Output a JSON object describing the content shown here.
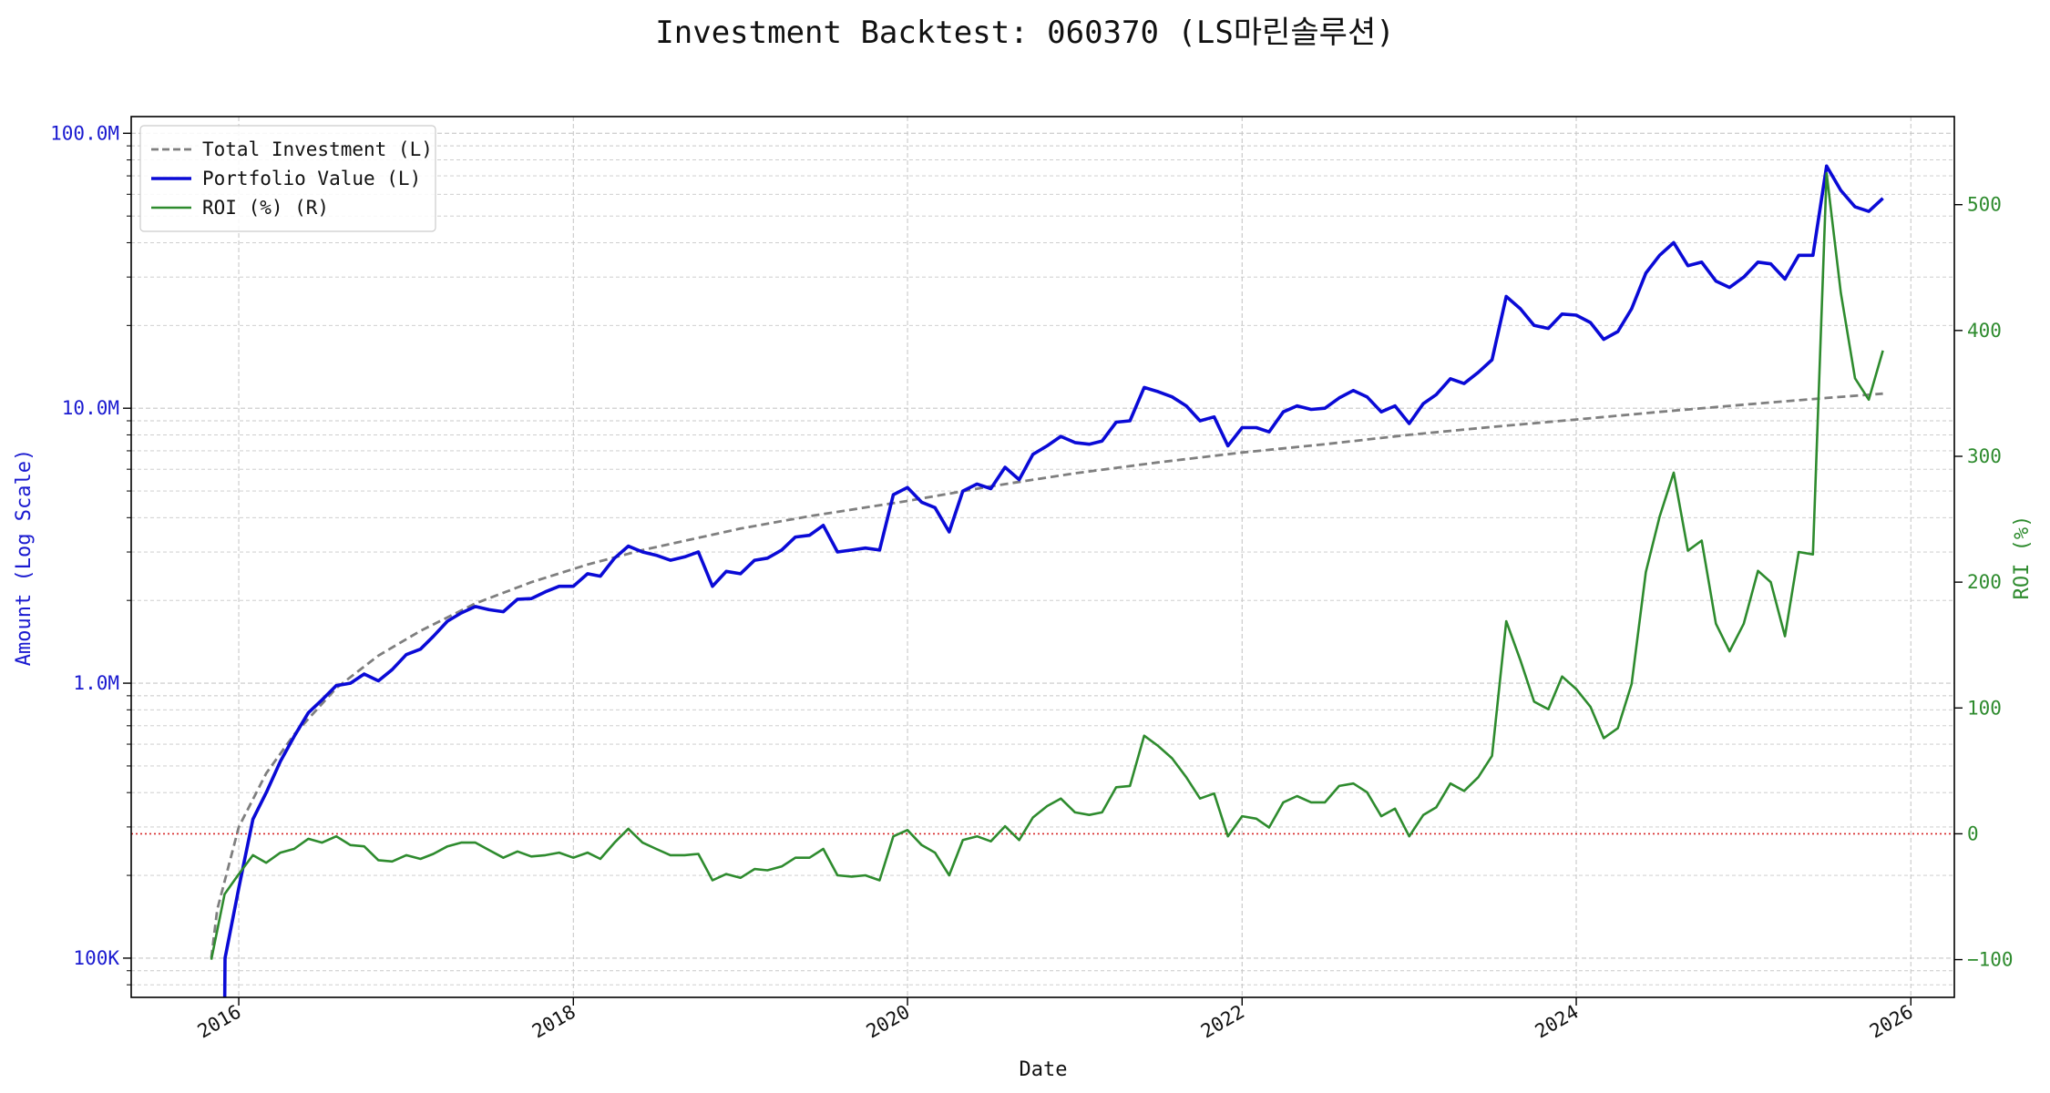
{
  "chart_data": {
    "type": "line",
    "title": "Investment Backtest: 060370 (LS마린솔루션)",
    "xlabel": "Date",
    "ylabel_left": "Amount (Log Scale)",
    "ylabel_right": "ROI (%)",
    "left_scale": "log",
    "x_range": [
      "2015-05-11",
      "2026-04-06"
    ],
    "ylim_left": [
      72000,
      115000000
    ],
    "ylim_right": [
      -130,
      570
    ],
    "x_ticks": [
      {
        "date": "2016-01-01",
        "label": "2016"
      },
      {
        "date": "2018-01-01",
        "label": "2018"
      },
      {
        "date": "2020-01-01",
        "label": "2020"
      },
      {
        "date": "2022-01-01",
        "label": "2022"
      },
      {
        "date": "2024-01-01",
        "label": "2024"
      },
      {
        "date": "2026-01-01",
        "label": "2026"
      }
    ],
    "y_left_ticks": [
      {
        "value": 100000,
        "label": "100K"
      },
      {
        "value": 1000000,
        "label": "1.0M"
      },
      {
        "value": 10000000,
        "label": "10.0M"
      },
      {
        "value": 100000000,
        "label": "100.0M"
      }
    ],
    "y_right_ticks": [
      {
        "value": -100,
        "label": "−100"
      },
      {
        "value": 0,
        "label": "0"
      },
      {
        "value": 100,
        "label": "100"
      },
      {
        "value": 200,
        "label": "200"
      },
      {
        "value": 300,
        "label": "300"
      },
      {
        "value": 400,
        "label": "400"
      },
      {
        "value": 500,
        "label": "500"
      }
    ],
    "grid": true,
    "legend_position": "top-left",
    "colors": {
      "investment": "#7f7f7f",
      "portfolio": "#0a0ad6",
      "roi": "#2e8b2e",
      "zero_line": "#d62728",
      "left_axis": "#1a1ad0",
      "right_axis": "#2e8b2e",
      "grid": "#c8c8c8"
    },
    "series": [
      {
        "name": "Total Investment (L)",
        "axis": "left",
        "style": "dashed",
        "x": [
          "2015-11-02",
          "2015-11-15",
          "2016-01-01",
          "2016-03-01",
          "2016-05-01",
          "2016-08-01",
          "2016-11-01",
          "2017-02-01",
          "2017-06-01",
          "2017-10-01",
          "2018-02-01",
          "2018-06-01",
          "2019-01-01",
          "2019-06-01",
          "2020-01-01",
          "2020-07-01",
          "2021-01-01",
          "2021-07-01",
          "2022-01-01",
          "2022-07-01",
          "2023-01-01",
          "2023-07-01",
          "2024-01-01",
          "2024-07-01",
          "2025-01-01",
          "2025-07-01",
          "2025-11-01"
        ],
        "y": [
          100000,
          150000,
          300000,
          470000,
          650000,
          960000,
          1260000,
          1550000,
          1950000,
          2330000,
          2700000,
          3050000,
          3650000,
          4050000,
          4600000,
          5200000,
          5800000,
          6350000,
          6900000,
          7400000,
          8000000,
          8550000,
          9100000,
          9700000,
          10300000,
          10900000,
          11300000
        ]
      },
      {
        "name": "Portfolio Value (L)",
        "axis": "left",
        "style": "solid",
        "x": [
          "2015-12-01",
          "2015-12-02",
          "2016-01-01",
          "2016-02-01",
          "2016-03-01",
          "2016-04-01",
          "2016-05-01",
          "2016-06-01",
          "2016-07-01",
          "2016-08-01",
          "2016-09-01",
          "2016-10-01",
          "2016-11-01",
          "2016-12-01",
          "2017-01-01",
          "2017-02-01",
          "2017-03-01",
          "2017-04-01",
          "2017-05-01",
          "2017-06-01",
          "2017-07-01",
          "2017-08-01",
          "2017-09-01",
          "2017-10-01",
          "2017-11-01",
          "2017-12-01",
          "2018-01-01",
          "2018-02-01",
          "2018-03-01",
          "2018-04-01",
          "2018-05-01",
          "2018-06-01",
          "2018-07-01",
          "2018-08-01",
          "2018-09-01",
          "2018-10-01",
          "2018-11-01",
          "2018-12-01",
          "2019-01-01",
          "2019-02-01",
          "2019-03-01",
          "2019-04-01",
          "2019-05-01",
          "2019-06-01",
          "2019-07-01",
          "2019-08-01",
          "2019-09-01",
          "2019-10-01",
          "2019-11-01",
          "2019-12-01",
          "2020-01-01",
          "2020-02-01",
          "2020-03-01",
          "2020-04-01",
          "2020-05-01",
          "2020-06-01",
          "2020-07-01",
          "2020-08-01",
          "2020-09-01",
          "2020-10-01",
          "2020-11-01",
          "2020-12-01",
          "2021-01-01",
          "2021-02-01",
          "2021-03-01",
          "2021-04-01",
          "2021-05-01",
          "2021-06-01",
          "2021-07-01",
          "2021-08-01",
          "2021-09-01",
          "2021-10-01",
          "2021-11-01",
          "2021-12-01",
          "2022-01-01",
          "2022-02-01",
          "2022-03-01",
          "2022-04-01",
          "2022-05-01",
          "2022-06-01",
          "2022-07-01",
          "2022-08-01",
          "2022-09-01",
          "2022-10-01",
          "2022-11-01",
          "2022-12-01",
          "2023-01-01",
          "2023-02-01",
          "2023-03-01",
          "2023-04-01",
          "2023-05-01",
          "2023-06-01",
          "2023-07-01",
          "2023-08-01",
          "2023-09-01",
          "2023-10-01",
          "2023-11-01",
          "2023-12-01",
          "2024-01-01",
          "2024-02-01",
          "2024-03-01",
          "2024-04-01",
          "2024-05-01",
          "2024-06-01",
          "2024-07-01",
          "2024-08-01",
          "2024-09-01",
          "2024-10-01",
          "2024-11-01",
          "2024-12-01",
          "2025-01-01",
          "2025-02-01",
          "2025-03-01",
          "2025-04-01",
          "2025-05-01",
          "2025-06-01",
          "2025-07-01",
          "2025-08-01",
          "2025-09-01",
          "2025-10-01",
          "2025-11-01"
        ],
        "y": [
          60000,
          100000,
          180000,
          320000,
          400000,
          520000,
          640000,
          780000,
          870000,
          980000,
          1000000,
          1080000,
          1020000,
          1120000,
          1270000,
          1330000,
          1480000,
          1680000,
          1800000,
          1900000,
          1850000,
          1820000,
          2020000,
          2030000,
          2150000,
          2250000,
          2250000,
          2500000,
          2450000,
          2850000,
          3150000,
          3000000,
          2920000,
          2800000,
          2880000,
          3000000,
          2250000,
          2550000,
          2500000,
          2800000,
          2850000,
          3050000,
          3400000,
          3450000,
          3750000,
          3000000,
          3050000,
          3100000,
          3050000,
          4850000,
          5150000,
          4550000,
          4350000,
          3550000,
          5000000,
          5300000,
          5100000,
          6100000,
          5500000,
          6800000,
          7300000,
          7900000,
          7500000,
          7400000,
          7600000,
          8900000,
          9000000,
          11900000,
          11500000,
          11000000,
          10200000,
          9000000,
          9300000,
          7300000,
          8500000,
          8500000,
          8200000,
          9700000,
          10200000,
          9900000,
          10000000,
          10900000,
          11600000,
          11000000,
          9700000,
          10200000,
          8800000,
          10400000,
          11200000,
          12800000,
          12300000,
          13500000,
          15000000,
          25500000,
          23000000,
          20000000,
          19500000,
          22000000,
          21800000,
          20500000,
          17800000,
          19000000,
          23000000,
          31000000,
          36000000,
          40000000,
          33000000,
          34000000,
          29000000,
          27500000,
          30000000,
          34000000,
          33500000,
          29500000,
          36000000,
          36000000,
          76000000,
          62000000,
          54000000,
          52000000,
          58000000
        ]
      },
      {
        "name": "ROI (%) (R)",
        "axis": "right",
        "style": "solid",
        "x": [
          "2015-11-02",
          "2015-12-01",
          "2016-01-01",
          "2016-02-01",
          "2016-03-01",
          "2016-04-01",
          "2016-05-01",
          "2016-06-01",
          "2016-07-01",
          "2016-08-01",
          "2016-09-01",
          "2016-10-01",
          "2016-11-01",
          "2016-12-01",
          "2017-01-01",
          "2017-02-01",
          "2017-03-01",
          "2017-04-01",
          "2017-05-01",
          "2017-06-01",
          "2017-07-01",
          "2017-08-01",
          "2017-09-01",
          "2017-10-01",
          "2017-11-01",
          "2017-12-01",
          "2018-01-01",
          "2018-02-01",
          "2018-03-01",
          "2018-04-01",
          "2018-05-01",
          "2018-06-01",
          "2018-07-01",
          "2018-08-01",
          "2018-09-01",
          "2018-10-01",
          "2018-11-01",
          "2018-12-01",
          "2019-01-01",
          "2019-02-01",
          "2019-03-01",
          "2019-04-01",
          "2019-05-01",
          "2019-06-01",
          "2019-07-01",
          "2019-08-01",
          "2019-09-01",
          "2019-10-01",
          "2019-11-01",
          "2019-12-01",
          "2020-01-01",
          "2020-02-01",
          "2020-03-01",
          "2020-04-01",
          "2020-05-01",
          "2020-06-01",
          "2020-07-01",
          "2020-08-01",
          "2020-09-01",
          "2020-10-01",
          "2020-11-01",
          "2020-12-01",
          "2021-01-01",
          "2021-02-01",
          "2021-03-01",
          "2021-04-01",
          "2021-05-01",
          "2021-06-01",
          "2021-07-01",
          "2021-08-01",
          "2021-09-01",
          "2021-10-01",
          "2021-11-01",
          "2021-12-01",
          "2022-01-01",
          "2022-02-01",
          "2022-03-01",
          "2022-04-01",
          "2022-05-01",
          "2022-06-01",
          "2022-07-01",
          "2022-08-01",
          "2022-09-01",
          "2022-10-01",
          "2022-11-01",
          "2022-12-01",
          "2023-01-01",
          "2023-02-01",
          "2023-03-01",
          "2023-04-01",
          "2023-05-01",
          "2023-06-01",
          "2023-07-01",
          "2023-08-01",
          "2023-09-01",
          "2023-10-01",
          "2023-11-01",
          "2023-12-01",
          "2024-01-01",
          "2024-02-01",
          "2024-03-01",
          "2024-04-01",
          "2024-05-01",
          "2024-06-01",
          "2024-07-01",
          "2024-08-01",
          "2024-09-01",
          "2024-10-01",
          "2024-11-01",
          "2024-12-01",
          "2025-01-01",
          "2025-02-01",
          "2025-03-01",
          "2025-04-01",
          "2025-05-01",
          "2025-06-01",
          "2025-07-01",
          "2025-08-01",
          "2025-09-01",
          "2025-10-01",
          "2025-11-01"
        ],
        "y": [
          -100,
          -48,
          -32,
          -17,
          -23,
          -15,
          -12,
          -4,
          -7,
          -2,
          -9,
          -10,
          -21,
          -22,
          -17,
          -20,
          -16,
          -10,
          -7,
          -7,
          -13,
          -19,
          -14,
          -18,
          -17,
          -15,
          -19,
          -15,
          -20,
          -7,
          4,
          -7,
          -12,
          -17,
          -17,
          -16,
          -37,
          -32,
          -35,
          -28,
          -29,
          -26,
          -19,
          -19,
          -12,
          -33,
          -34,
          -33,
          -37,
          -2,
          3,
          -9,
          -15,
          -33,
          -5,
          -2,
          -6,
          6,
          -5,
          13,
          22,
          28,
          17,
          15,
          17,
          37,
          38,
          78,
          70,
          60,
          45,
          28,
          32,
          -2,
          14,
          12,
          5,
          25,
          30,
          25,
          25,
          38,
          40,
          33,
          14,
          20,
          -2,
          15,
          21,
          40,
          34,
          45,
          62,
          169,
          138,
          105,
          99,
          125,
          115,
          101,
          76,
          84,
          119,
          208,
          252,
          287,
          225,
          233,
          167,
          145,
          167,
          209,
          200,
          157,
          224,
          222,
          525,
          430,
          362,
          345,
          384
        ]
      }
    ]
  }
}
